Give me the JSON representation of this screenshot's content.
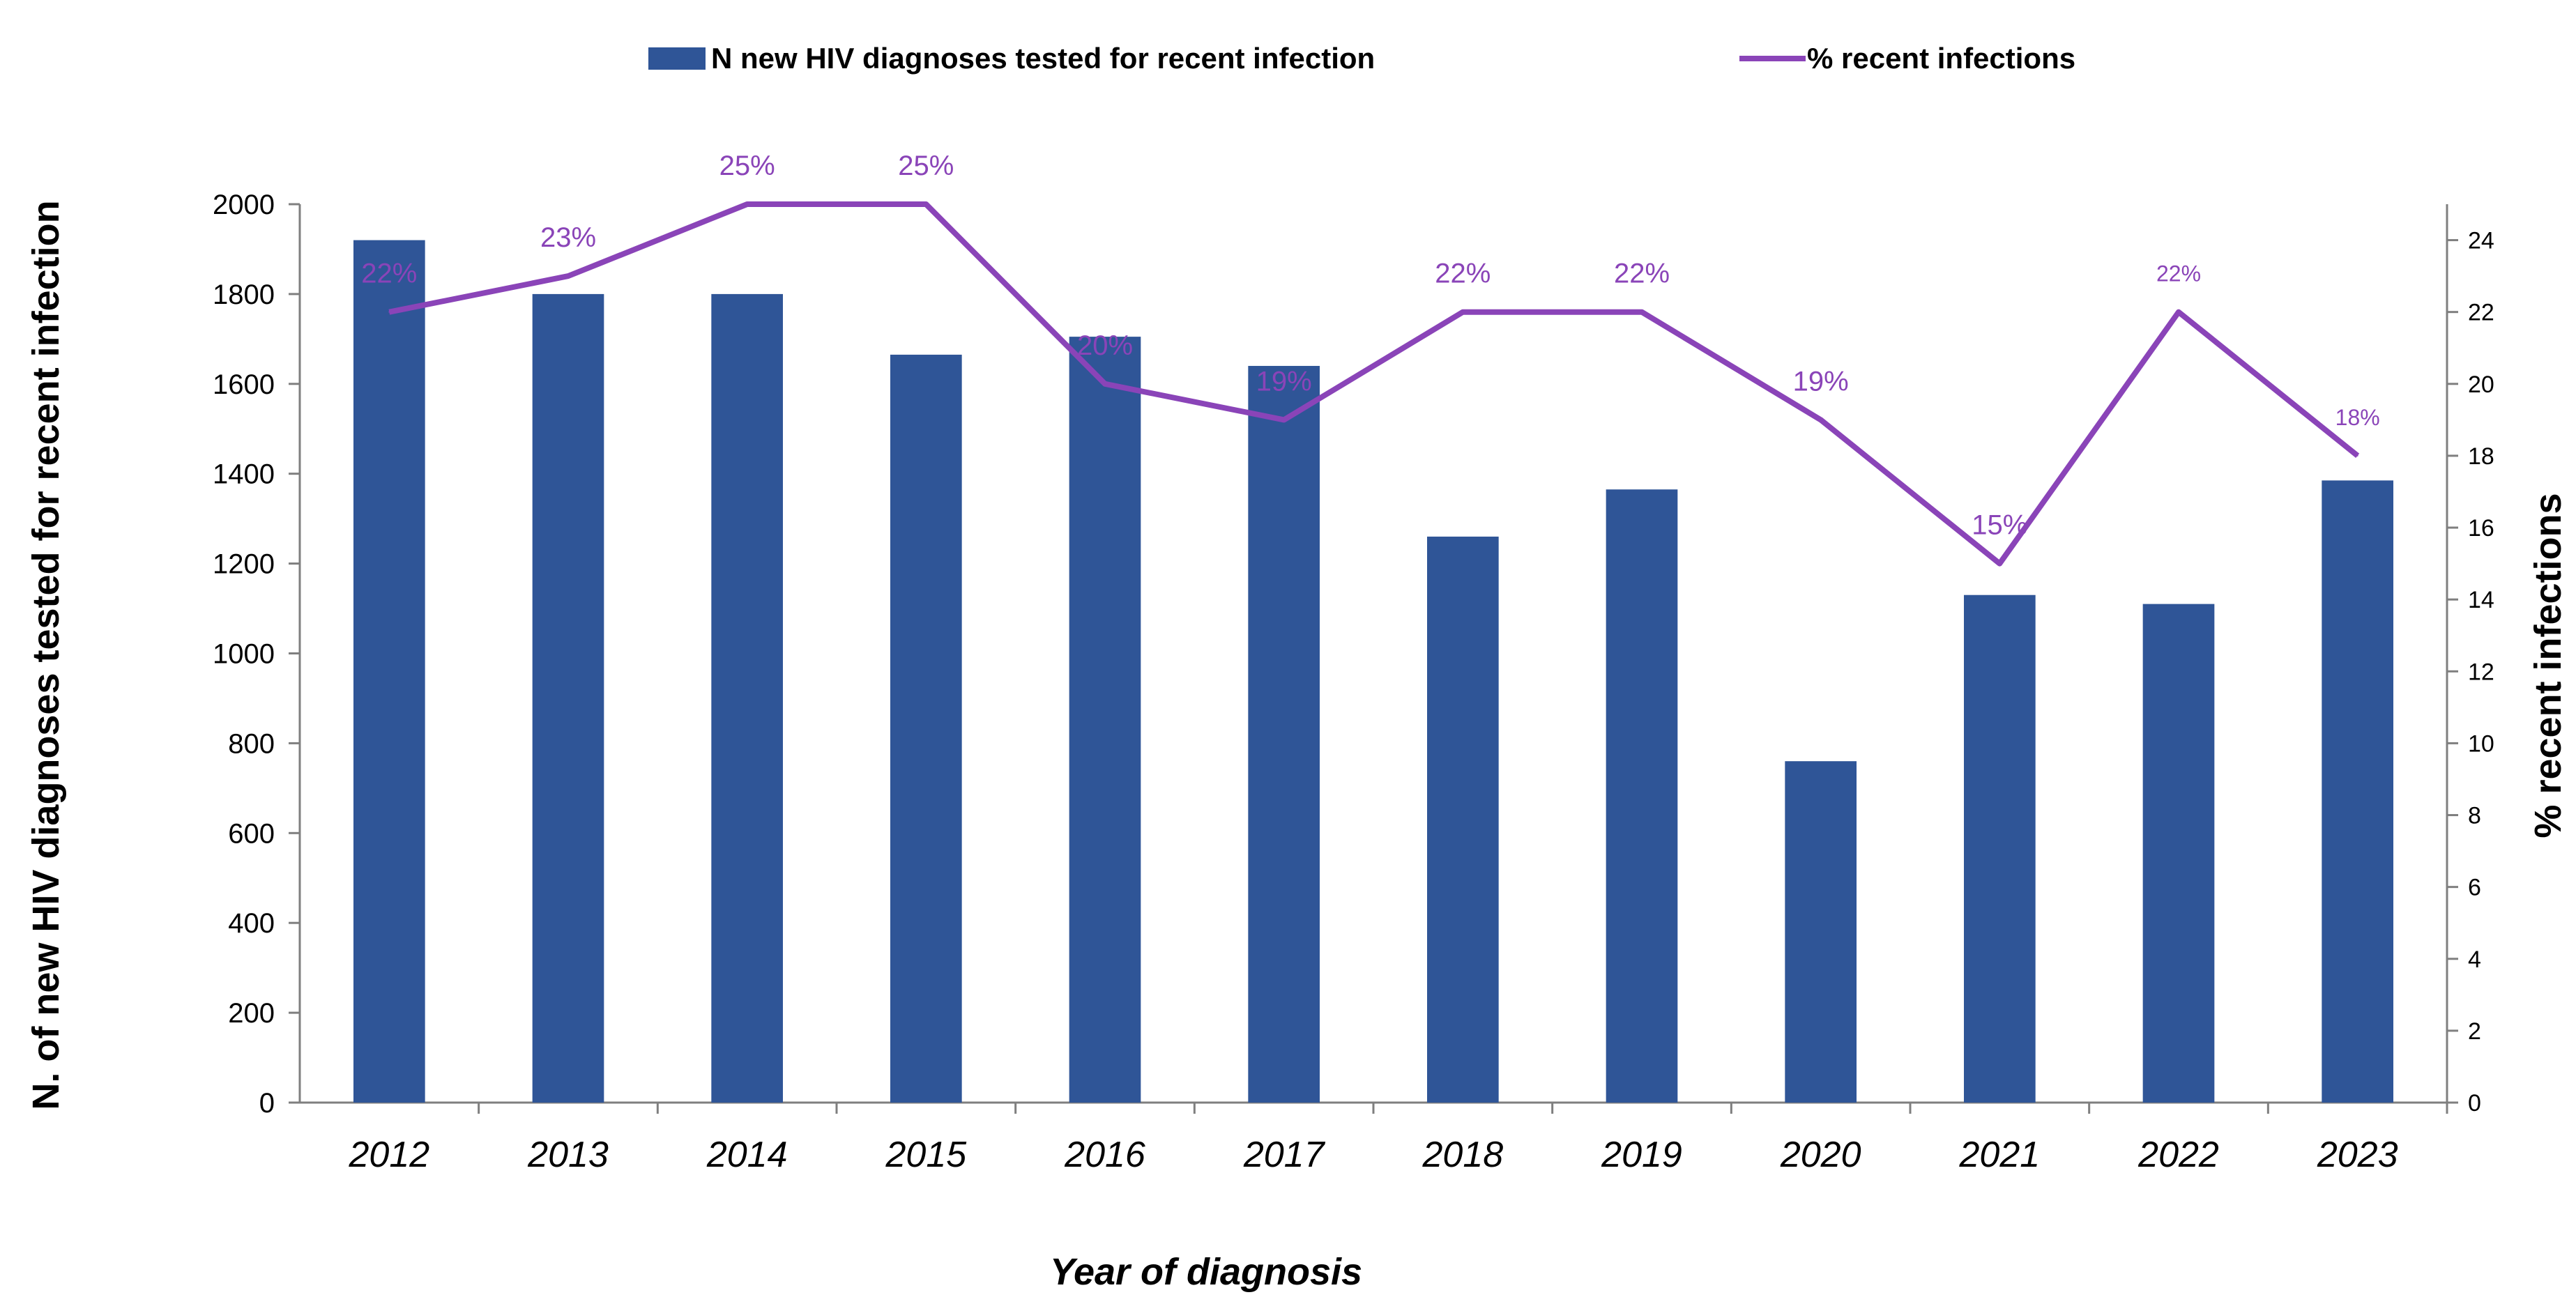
{
  "chart_data": {
    "type": "bar+line",
    "title": "",
    "categories": [
      "2012",
      "2013",
      "2014",
      "2015",
      "2016",
      "2017",
      "2018",
      "2019",
      "2020",
      "2021",
      "2022",
      "2023"
    ],
    "series": [
      {
        "name": "N new HIV diagnoses tested for recent infection",
        "type": "bar",
        "axis": "left",
        "color": "#2f5597",
        "values": [
          1920,
          1800,
          1800,
          1665,
          1705,
          1640,
          1260,
          1365,
          760,
          1130,
          1110,
          1385
        ]
      },
      {
        "name": "% recent infections",
        "type": "line",
        "axis": "right",
        "color": "#8a44b8",
        "values": [
          22,
          23,
          25,
          25,
          20,
          19,
          22,
          22,
          19,
          15,
          22,
          18
        ],
        "labels": [
          "22%",
          "23%",
          "25%",
          "25%",
          "20%",
          "19%",
          "22%",
          "22%",
          "19%",
          "15%",
          "22%",
          "18%"
        ]
      }
    ],
    "xlabel": "Year of diagnosis",
    "ylabel": "N. of  new HIV diagnoses  tested for recent infection",
    "y2label": "% recent infections",
    "ylim": [
      0,
      2000
    ],
    "yticks": [
      "0",
      "200",
      "400",
      "600",
      "800",
      "1000",
      "1200",
      "1400",
      "1600",
      "1800",
      "2000"
    ],
    "y2lim": [
      0,
      25
    ],
    "y2ticks": [
      "0",
      "2",
      "4",
      "6",
      "8",
      "10",
      "12",
      "14",
      "16",
      "18",
      "20",
      "22",
      "24"
    ],
    "grid": false,
    "legend_position": "top"
  }
}
